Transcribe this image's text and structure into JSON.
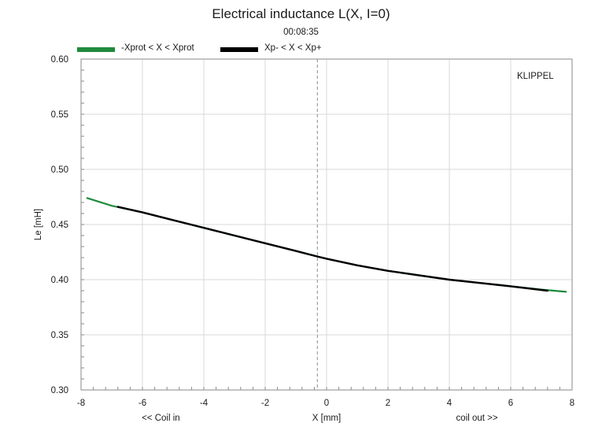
{
  "chart_data": {
    "type": "line",
    "title": "Electrical inductance L(X, I=0)",
    "subtitle": "00:08:35",
    "watermark": "KLIPPEL",
    "xlabel": "X [mm]",
    "ylabel": "Le [mH]",
    "x_side_labels": {
      "left": "<< Coil in",
      "right": "coil out >>"
    },
    "xlim": [
      -8,
      8
    ],
    "ylim": [
      0.3,
      0.6
    ],
    "x_ticks": [
      "-8",
      "-6",
      "-4",
      "-2",
      "0",
      "2",
      "4",
      "6",
      "8"
    ],
    "x_tick_values": [
      -8,
      -6,
      -4,
      -2,
      0,
      2,
      4,
      6,
      8
    ],
    "y_ticks": [
      "0.30",
      "0.35",
      "0.40",
      "0.45",
      "0.50",
      "0.55",
      "0.60"
    ],
    "y_tick_values": [
      0.3,
      0.35,
      0.4,
      0.45,
      0.5,
      0.55,
      0.6
    ],
    "grid": true,
    "reference_line_x": -0.3,
    "legend_position": "top-left",
    "series": [
      {
        "name": "-Xprot < X < Xprot",
        "color": "#1f8a3c",
        "x": [
          -7.8,
          -7,
          -6,
          -5,
          -4,
          -3,
          -2,
          -1,
          -0.3,
          0,
          1,
          2,
          3,
          4,
          5,
          6,
          7,
          7.8
        ],
        "y": [
          0.474,
          0.467,
          0.461,
          0.454,
          0.447,
          0.44,
          0.433,
          0.426,
          0.421,
          0.419,
          0.413,
          0.408,
          0.404,
          0.4,
          0.397,
          0.394,
          0.391,
          0.389
        ]
      },
      {
        "name": "Xp- < X < Xp+",
        "color": "#000000",
        "x": [
          -6.8,
          -6,
          -5,
          -4,
          -3,
          -2,
          -1,
          -0.3,
          0,
          1,
          2,
          3,
          4,
          5,
          6,
          7.2
        ],
        "y": [
          0.466,
          0.461,
          0.454,
          0.447,
          0.44,
          0.433,
          0.426,
          0.421,
          0.419,
          0.413,
          0.408,
          0.404,
          0.4,
          0.397,
          0.394,
          0.39
        ]
      }
    ]
  }
}
